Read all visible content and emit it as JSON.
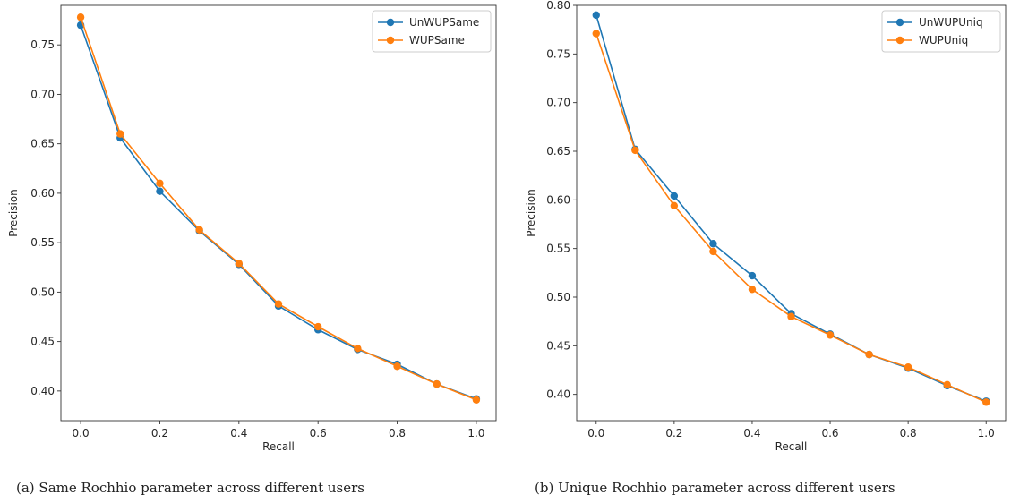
{
  "chart_data": [
    {
      "type": "line",
      "caption": "(a) Same Rochhio parameter across different users",
      "xlabel": "Recall",
      "ylabel": "Precision",
      "xlim": [
        -0.05,
        1.05
      ],
      "ylim": [
        0.37,
        0.79
      ],
      "xticks": [
        0.0,
        0.2,
        0.4,
        0.6,
        0.8,
        1.0
      ],
      "xtick_labels": [
        "0.0",
        "0.2",
        "0.4",
        "0.6",
        "0.8",
        "1.0"
      ],
      "yticks": [
        0.4,
        0.45,
        0.5,
        0.55,
        0.6,
        0.65,
        0.7,
        0.75
      ],
      "ytick_labels": [
        "0.40",
        "0.45",
        "0.50",
        "0.55",
        "0.60",
        "0.65",
        "0.70",
        "0.75"
      ],
      "grid": false,
      "legend_position": "top-right",
      "x": [
        0.0,
        0.1,
        0.2,
        0.3,
        0.4,
        0.5,
        0.6,
        0.7,
        0.8,
        0.9,
        1.0
      ],
      "series": [
        {
          "name": "UnWUPSame",
          "color": "#1f77b4",
          "values": [
            0.77,
            0.656,
            0.602,
            0.562,
            0.528,
            0.486,
            0.462,
            0.442,
            0.427,
            0.407,
            0.392
          ]
        },
        {
          "name": "WUPSame",
          "color": "#ff7f0e",
          "values": [
            0.778,
            0.66,
            0.61,
            0.563,
            0.529,
            0.488,
            0.465,
            0.443,
            0.425,
            0.407,
            0.391
          ]
        }
      ]
    },
    {
      "type": "line",
      "caption": "(b) Unique Rochhio parameter across different users",
      "xlabel": "Recall",
      "ylabel": "Precision",
      "xlim": [
        -0.05,
        1.05
      ],
      "ylim": [
        0.373,
        0.8
      ],
      "xticks": [
        0.0,
        0.2,
        0.4,
        0.6,
        0.8,
        1.0
      ],
      "xtick_labels": [
        "0.0",
        "0.2",
        "0.4",
        "0.6",
        "0.8",
        "1.0"
      ],
      "yticks": [
        0.4,
        0.45,
        0.5,
        0.55,
        0.6,
        0.65,
        0.7,
        0.75,
        0.8
      ],
      "ytick_labels": [
        "0.40",
        "0.45",
        "0.50",
        "0.55",
        "0.60",
        "0.65",
        "0.70",
        "0.75",
        "0.80"
      ],
      "grid": false,
      "legend_position": "top-right",
      "x": [
        0.0,
        0.1,
        0.2,
        0.3,
        0.4,
        0.5,
        0.6,
        0.7,
        0.8,
        0.9,
        1.0
      ],
      "series": [
        {
          "name": "UnWUPUniq",
          "color": "#1f77b4",
          "values": [
            0.79,
            0.652,
            0.604,
            0.555,
            0.522,
            0.483,
            0.462,
            0.441,
            0.427,
            0.409,
            0.393
          ]
        },
        {
          "name": "WUPUniq",
          "color": "#ff7f0e",
          "values": [
            0.771,
            0.651,
            0.594,
            0.547,
            0.508,
            0.48,
            0.461,
            0.441,
            0.428,
            0.41,
            0.392
          ]
        }
      ]
    }
  ]
}
